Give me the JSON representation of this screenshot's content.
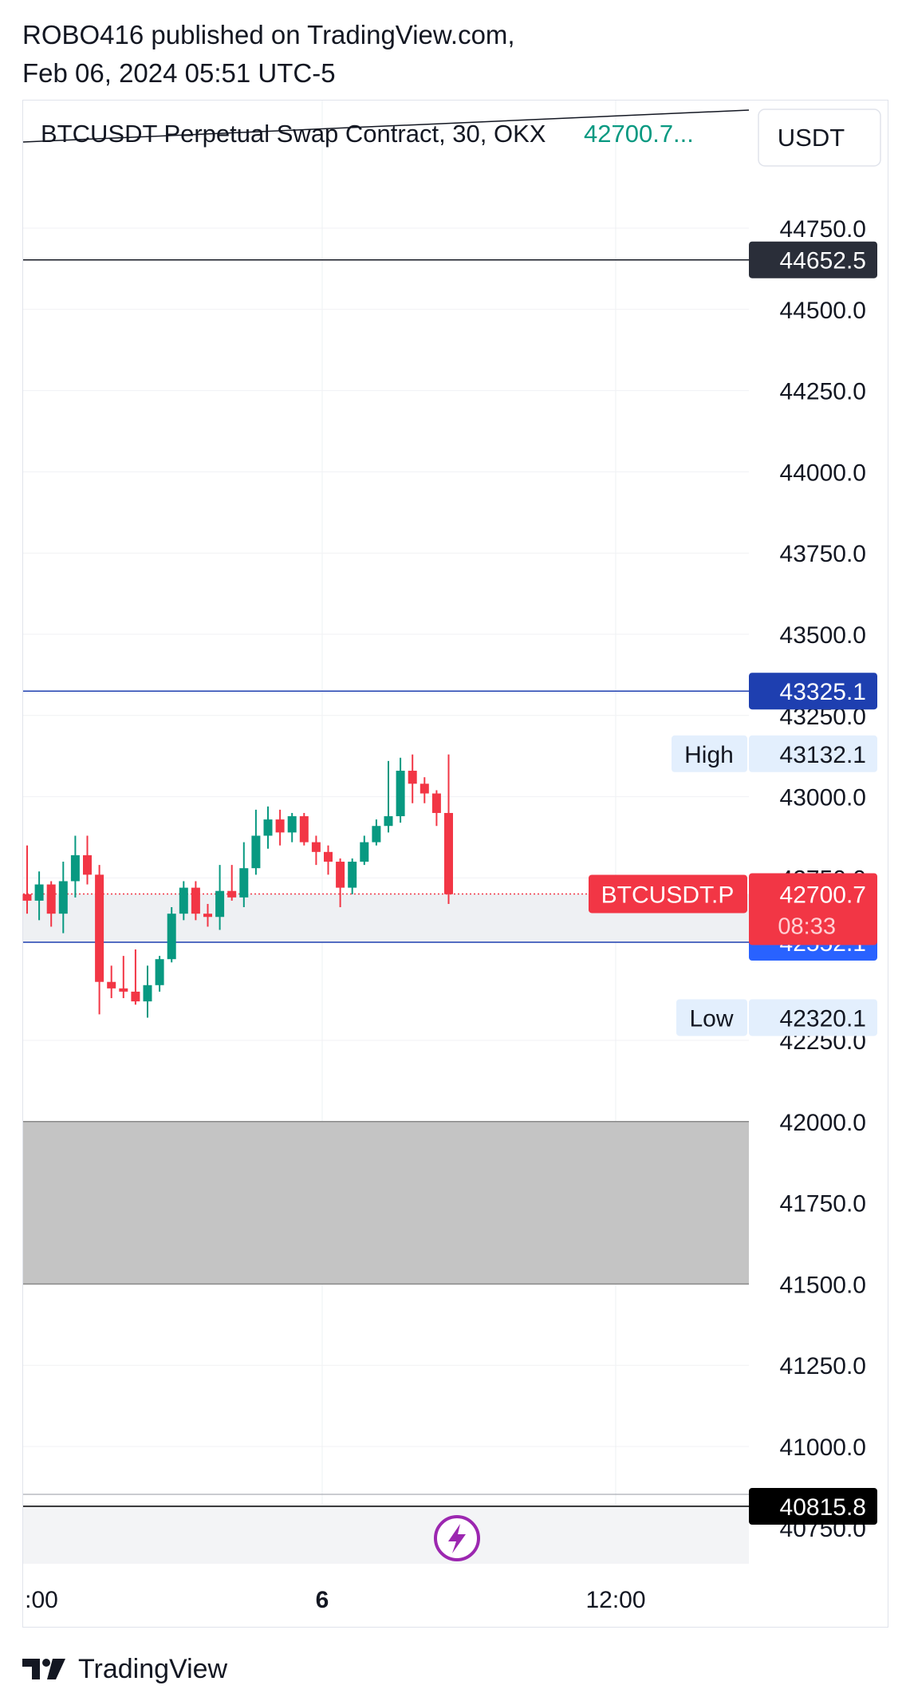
{
  "header": {
    "publisher": "ROBO416 published on TradingView.com,",
    "date": "Feb 06, 2024 05:51 UTC-5"
  },
  "footer": {
    "brand": "TradingView"
  },
  "chart_data": {
    "type": "candlestick",
    "symbol_line": "BTCUSDT Perpetual Swap Contract, 30, OKX",
    "last_price_text": "42700.7...",
    "currency": "USDT",
    "y_ticks": [
      "44750.0",
      "44500.0",
      "44250.0",
      "44000.0",
      "43750.0",
      "43500.0",
      "43250.0",
      "43000.0",
      "42750.0",
      "42250.0",
      "42000.0",
      "41750.0",
      "41500.0",
      "41250.0",
      "41000.0",
      "40750.0"
    ],
    "x_ticks": [
      ":00",
      "6",
      "12:00"
    ],
    "ylim": [
      40700,
      45000
    ],
    "grid": true,
    "price_lines": [
      {
        "price": 44652.5,
        "label": "44652.5",
        "color": "#131722",
        "label_bg": "#2a2e39"
      },
      {
        "price": 43325.1,
        "label": "43325.1",
        "color": "#1e3fb0",
        "label_bg": "#1e3fb0"
      },
      {
        "price": 42552.1,
        "label": "42552.1",
        "color": "#1e3fb0",
        "label_bg": "#2962ff"
      },
      {
        "price": 40815.8,
        "label": "40815.8",
        "color": "#000000",
        "label_bg": "#000000"
      }
    ],
    "high": {
      "label": "High",
      "price": 43132.1,
      "value": "43132.1"
    },
    "low": {
      "label": "Low",
      "price": 42320.1,
      "value": "42320.1"
    },
    "last": {
      "symbol": "BTCUSDT.P",
      "price": 42700.7,
      "value": "42700.7",
      "countdown": "08:33"
    },
    "zones": [
      {
        "from": 41500,
        "to": 42000,
        "color": "#c4c4c4"
      },
      {
        "from": 42552.1,
        "to": 42700.7,
        "color": "#eef0f3"
      }
    ],
    "trendline": {
      "from": [
        0,
        44910
      ],
      "to": 44975
    },
    "candles": [
      {
        "o": 42700,
        "h": 42850,
        "l": 42640,
        "c": 42680
      },
      {
        "o": 42680,
        "h": 42770,
        "l": 42620,
        "c": 42730
      },
      {
        "o": 42730,
        "h": 42740,
        "l": 42600,
        "c": 42640
      },
      {
        "o": 42640,
        "h": 42800,
        "l": 42580,
        "c": 42740
      },
      {
        "o": 42740,
        "h": 42880,
        "l": 42690,
        "c": 42820
      },
      {
        "o": 42820,
        "h": 42880,
        "l": 42730,
        "c": 42760
      },
      {
        "o": 42760,
        "h": 42790,
        "l": 42330,
        "c": 42430
      },
      {
        "o": 42430,
        "h": 42480,
        "l": 42380,
        "c": 42410
      },
      {
        "o": 42410,
        "h": 42510,
        "l": 42380,
        "c": 42400
      },
      {
        "o": 42400,
        "h": 42530,
        "l": 42360,
        "c": 42370
      },
      {
        "o": 42370,
        "h": 42480,
        "l": 42320,
        "c": 42420
      },
      {
        "o": 42420,
        "h": 42510,
        "l": 42400,
        "c": 42500
      },
      {
        "o": 42500,
        "h": 42660,
        "l": 42490,
        "c": 42640
      },
      {
        "o": 42640,
        "h": 42740,
        "l": 42620,
        "c": 42720
      },
      {
        "o": 42720,
        "h": 42740,
        "l": 42620,
        "c": 42640
      },
      {
        "o": 42640,
        "h": 42670,
        "l": 42600,
        "c": 42630
      },
      {
        "o": 42630,
        "h": 42790,
        "l": 42590,
        "c": 42710
      },
      {
        "o": 42710,
        "h": 42790,
        "l": 42680,
        "c": 42690
      },
      {
        "o": 42690,
        "h": 42860,
        "l": 42660,
        "c": 42780
      },
      {
        "o": 42780,
        "h": 42960,
        "l": 42760,
        "c": 42880
      },
      {
        "o": 42880,
        "h": 42970,
        "l": 42840,
        "c": 42930
      },
      {
        "o": 42930,
        "h": 42960,
        "l": 42850,
        "c": 42890
      },
      {
        "o": 42890,
        "h": 42950,
        "l": 42860,
        "c": 42940
      },
      {
        "o": 42940,
        "h": 42950,
        "l": 42850,
        "c": 42860
      },
      {
        "o": 42860,
        "h": 42880,
        "l": 42790,
        "c": 42830
      },
      {
        "o": 42830,
        "h": 42850,
        "l": 42760,
        "c": 42800
      },
      {
        "o": 42800,
        "h": 42810,
        "l": 42660,
        "c": 42720
      },
      {
        "o": 42720,
        "h": 42810,
        "l": 42700,
        "c": 42800
      },
      {
        "o": 42800,
        "h": 42880,
        "l": 42790,
        "c": 42860
      },
      {
        "o": 42860,
        "h": 42930,
        "l": 42850,
        "c": 42910
      },
      {
        "o": 42910,
        "h": 43110,
        "l": 42890,
        "c": 42940
      },
      {
        "o": 42940,
        "h": 43120,
        "l": 42920,
        "c": 43080
      },
      {
        "o": 43080,
        "h": 43130,
        "l": 42980,
        "c": 43040
      },
      {
        "o": 43040,
        "h": 43060,
        "l": 42980,
        "c": 43010
      },
      {
        "o": 43010,
        "h": 43020,
        "l": 42910,
        "c": 42950
      },
      {
        "o": 42950,
        "h": 43130,
        "l": 42670,
        "c": 42700
      }
    ],
    "up_color": "#089981",
    "down_color": "#f23645"
  }
}
